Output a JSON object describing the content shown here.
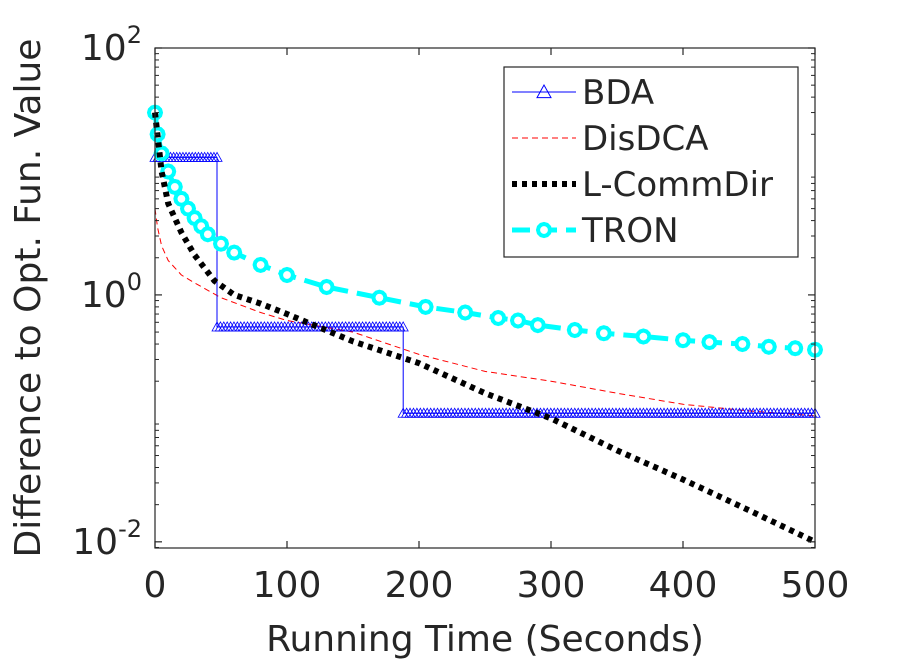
{
  "chart_data": {
    "type": "line",
    "title": "",
    "xlabel": "Running Time (Seconds)",
    "ylabel": "Difference to Opt. Fun. Value",
    "xlim": [
      0,
      500
    ],
    "ylim_log10": [
      -2.05,
      2
    ],
    "yscale": "log",
    "x_ticks": [
      0,
      100,
      200,
      300,
      400,
      500
    ],
    "x_tick_labels": [
      "0",
      "100",
      "200",
      "300",
      "400",
      "500"
    ],
    "y_ticks": [
      {
        "exp": 2,
        "base": "10",
        "sup": "2"
      },
      {
        "exp": 0,
        "base": "10",
        "sup": "0"
      },
      {
        "exp": -2,
        "base": "10",
        "sup": "-2"
      }
    ],
    "grid": false,
    "legend_position": "top-right",
    "series": [
      {
        "name": "BDA",
        "color": "#0000ff",
        "style": "solid",
        "marker": "triangle",
        "segments": [
          {
            "x0": 0,
            "x1": 47,
            "y": 13,
            "markers": 20
          },
          {
            "x0": 47,
            "x1": 188,
            "y": 0.55,
            "markers": 55
          },
          {
            "x0": 188,
            "x1": 500,
            "y": 0.11,
            "markers": 120
          }
        ],
        "x": [
          0,
          2,
          2,
          47,
          47,
          188,
          188,
          500
        ],
        "y": [
          30,
          30,
          13,
          13,
          0.55,
          0.55,
          0.11,
          0.11
        ]
      },
      {
        "name": "DisDCA",
        "color": "#ff0000",
        "style": "dashed",
        "marker": "none",
        "x": [
          0,
          2,
          5,
          10,
          20,
          30,
          50,
          80,
          100,
          150,
          200,
          250,
          300,
          350,
          400,
          450,
          500
        ],
        "y": [
          5,
          3.5,
          2.5,
          1.9,
          1.45,
          1.25,
          0.95,
          0.72,
          0.62,
          0.5,
          0.33,
          0.24,
          0.2,
          0.16,
          0.13,
          0.115,
          0.105
        ]
      },
      {
        "name": "L-CommDir",
        "color": "#000000",
        "style": "dotted",
        "marker": "none",
        "x": [
          0,
          5,
          10,
          20,
          30,
          45,
          60,
          80,
          100,
          150,
          200,
          250,
          300,
          350,
          400,
          450,
          500
        ],
        "y": [
          30,
          10,
          5.5,
          3.2,
          2.1,
          1.3,
          1.0,
          0.85,
          0.7,
          0.42,
          0.28,
          0.16,
          0.1,
          0.055,
          0.032,
          0.018,
          0.01
        ]
      },
      {
        "name": "TRON",
        "color": "#00ffff",
        "style": "dashed",
        "marker": "circle",
        "x": [
          0,
          2,
          5,
          10,
          15,
          20,
          25,
          30,
          35,
          40,
          50,
          60,
          80,
          100,
          130,
          170,
          205,
          235,
          260,
          275,
          290,
          318,
          340,
          370,
          400,
          420,
          445,
          465,
          485,
          500
        ],
        "y": [
          30,
          20,
          14,
          10,
          7.5,
          6,
          5,
          4.2,
          3.6,
          3.1,
          2.6,
          2.2,
          1.75,
          1.45,
          1.16,
          0.95,
          0.8,
          0.72,
          0.65,
          0.62,
          0.57,
          0.52,
          0.49,
          0.46,
          0.43,
          0.415,
          0.4,
          0.38,
          0.37,
          0.36
        ]
      }
    ]
  }
}
